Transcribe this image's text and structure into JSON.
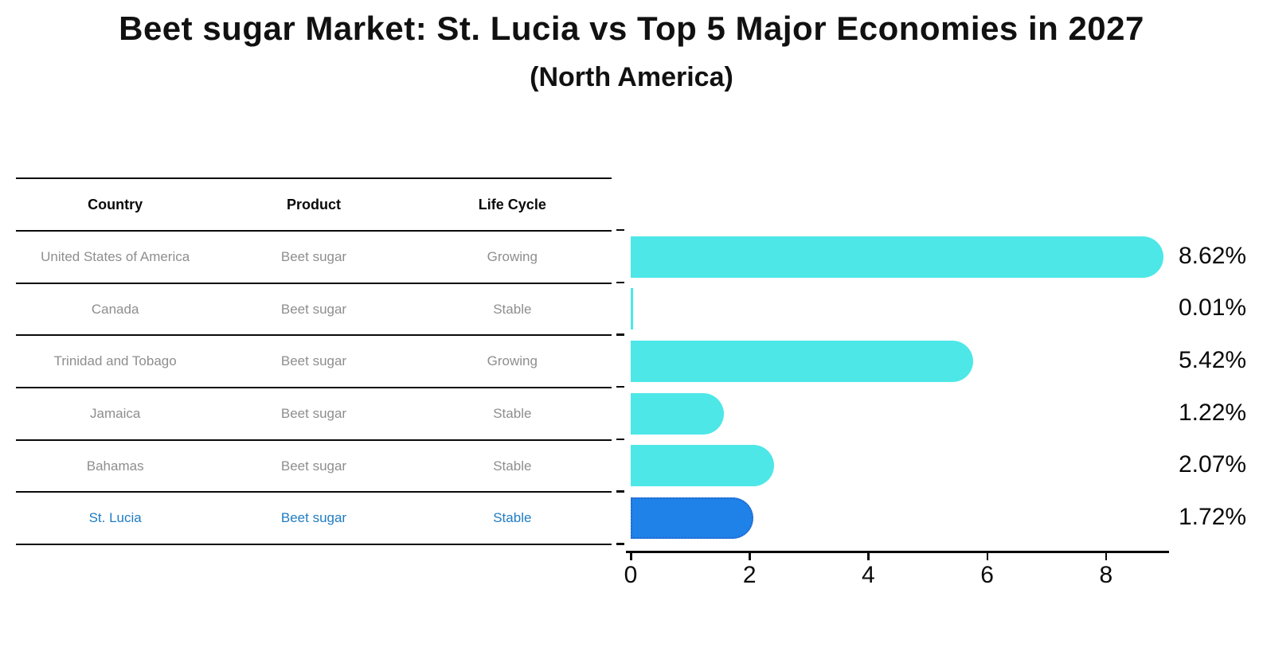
{
  "title": {
    "main": "Beet sugar Market: St. Lucia vs Top 5 Major Economies in 2027",
    "sub": "(North America)"
  },
  "table": {
    "headers": [
      "Country",
      "Product",
      "Life Cycle"
    ],
    "rows": [
      {
        "country": "United States of America",
        "product": "Beet sugar",
        "life_cycle": "Growing",
        "highlighted": false
      },
      {
        "country": "Canada",
        "product": "Beet sugar",
        "life_cycle": "Stable",
        "highlighted": false
      },
      {
        "country": "Trinidad and Tobago",
        "product": "Beet sugar",
        "life_cycle": "Growing",
        "highlighted": false
      },
      {
        "country": "Jamaica",
        "product": "Beet sugar",
        "life_cycle": "Stable",
        "highlighted": false
      },
      {
        "country": "Bahamas",
        "product": "Beet sugar",
        "life_cycle": "Stable",
        "highlighted": false
      },
      {
        "country": "St. Lucia",
        "product": "Beet sugar",
        "life_cycle": "Stable",
        "highlighted": true
      }
    ]
  },
  "chart_data": {
    "type": "bar",
    "orientation": "horizontal",
    "title": "Beet sugar Market: St. Lucia vs Top 5 Major Economies in 2027 (North America)",
    "categories": [
      "United States of America",
      "Canada",
      "Trinidad and Tobago",
      "Jamaica",
      "Bahamas",
      "St. Lucia"
    ],
    "values": [
      8.62,
      0.01,
      5.42,
      1.22,
      2.07,
      1.72
    ],
    "value_labels": [
      "8.62%",
      "0.01%",
      "5.42%",
      "1.22%",
      "2.07%",
      "1.72%"
    ],
    "x_ticks": [
      0,
      2,
      4,
      6,
      8
    ],
    "xlim": [
      0,
      9.05
    ],
    "grid": false,
    "legend": false,
    "highlight_index": 5,
    "bar_color": "#4de7e8",
    "highlight_color": "#1e82e8",
    "highlight_border_color": "#2a66cc"
  },
  "colors": {
    "row_text": "#8e8e8e",
    "highlight_text": "#1e7cc4",
    "line": "#0a0a0a"
  }
}
